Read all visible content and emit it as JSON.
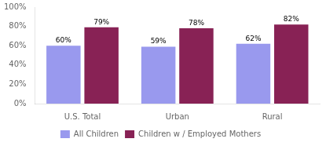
{
  "chart_data": {
    "type": "bar",
    "categories": [
      "U.S. Total",
      "Urban",
      "Rural"
    ],
    "series": [
      {
        "name": "All Children",
        "color": "#9999ee",
        "values": [
          60,
          59,
          62
        ],
        "value_labels": [
          "60%",
          "59%",
          "62%"
        ]
      },
      {
        "name": "Children w / Employed Mothers",
        "color": "#882255",
        "values": [
          79,
          78,
          82
        ],
        "value_labels": [
          "79%",
          "78%",
          "82%"
        ]
      }
    ],
    "ylim": [
      0,
      100
    ],
    "yticks": [
      {
        "value": 0,
        "label": "0%"
      },
      {
        "value": 20,
        "label": "20%"
      },
      {
        "value": 40,
        "label": "40%"
      },
      {
        "value": 60,
        "label": "60%"
      },
      {
        "value": 80,
        "label": "80%"
      },
      {
        "value": 100,
        "label": "100%"
      }
    ],
    "grid": false,
    "legend": "bottom",
    "data_labels": true
  }
}
